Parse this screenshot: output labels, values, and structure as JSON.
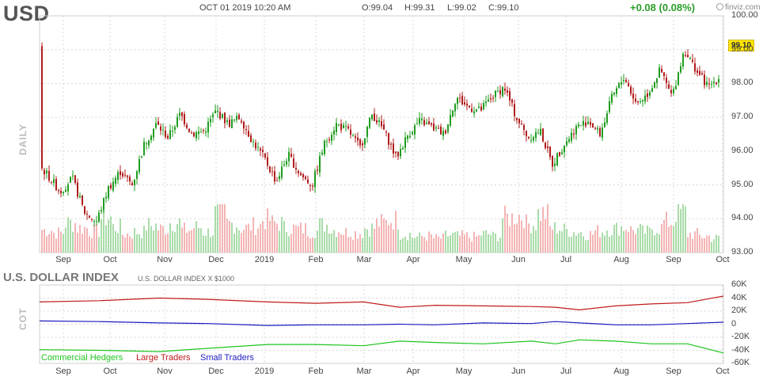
{
  "header": {
    "ticker": "USD",
    "datetime": "OCT 01 2019 10:20 AM",
    "open": "O:99.04",
    "high": "H:99.31",
    "low": "L:99.02",
    "close": "C:99.10",
    "change": "+0.08 (0.08%)",
    "logo": "finviz.com"
  },
  "colors": {
    "up": "#1f9c1f",
    "down": "#b01b1b",
    "volume_up": "#a9dca9",
    "volume_down": "#f4b4b4",
    "grid": "#d8d8d8",
    "commercial": "#1fc41f",
    "large": "#c01b1b",
    "small": "#1b1bc0",
    "price_tag": "#ffe600"
  },
  "chart_data": [
    {
      "type": "candlestick",
      "vertical_label": "DAILY",
      "ylim": [
        93.0,
        100.0
      ],
      "y_ticks": [
        "100.00",
        "99.00",
        "98.00",
        "97.00",
        "96.00",
        "95.00",
        "94.00",
        "93.00"
      ],
      "x_ticks": [
        "Sep",
        "Oct",
        "Nov",
        "Dec",
        "2019",
        "Feb",
        "Mar",
        "Apr",
        "May",
        "Jun",
        "Jul",
        "Aug",
        "Sep",
        "Oct"
      ],
      "last_price": "99.10",
      "closes": [
        {
          "x": "2018-08-30",
          "y": 95.5
        },
        {
          "x": "2018-09-04",
          "y": 95.2
        },
        {
          "x": "2018-09-10",
          "y": 94.8
        },
        {
          "x": "2018-09-17",
          "y": 95.2
        },
        {
          "x": "2018-09-24",
          "y": 94.2
        },
        {
          "x": "2018-10-01",
          "y": 93.9
        },
        {
          "x": "2018-10-08",
          "y": 94.9
        },
        {
          "x": "2018-10-15",
          "y": 95.4
        },
        {
          "x": "2018-10-22",
          "y": 95.0
        },
        {
          "x": "2018-10-29",
          "y": 96.2
        },
        {
          "x": "2018-11-05",
          "y": 96.8
        },
        {
          "x": "2018-11-12",
          "y": 96.4
        },
        {
          "x": "2018-11-19",
          "y": 97.1
        },
        {
          "x": "2018-11-26",
          "y": 96.5
        },
        {
          "x": "2018-12-03",
          "y": 96.6
        },
        {
          "x": "2018-12-10",
          "y": 97.2
        },
        {
          "x": "2018-12-17",
          "y": 96.8
        },
        {
          "x": "2018-12-24",
          "y": 97.0
        },
        {
          "x": "2018-12-31",
          "y": 96.3
        },
        {
          "x": "2019-01-07",
          "y": 95.8
        },
        {
          "x": "2019-01-14",
          "y": 95.1
        },
        {
          "x": "2019-01-21",
          "y": 95.9
        },
        {
          "x": "2019-01-28",
          "y": 95.3
        },
        {
          "x": "2019-02-04",
          "y": 95.0
        },
        {
          "x": "2019-02-11",
          "y": 96.2
        },
        {
          "x": "2019-02-18",
          "y": 96.8
        },
        {
          "x": "2019-02-25",
          "y": 96.6
        },
        {
          "x": "2019-03-04",
          "y": 96.1
        },
        {
          "x": "2019-03-11",
          "y": 97.1
        },
        {
          "x": "2019-03-18",
          "y": 96.6
        },
        {
          "x": "2019-03-25",
          "y": 95.8
        },
        {
          "x": "2019-04-01",
          "y": 96.5
        },
        {
          "x": "2019-04-08",
          "y": 96.9
        },
        {
          "x": "2019-04-15",
          "y": 96.7
        },
        {
          "x": "2019-04-22",
          "y": 96.5
        },
        {
          "x": "2019-04-29",
          "y": 97.6
        },
        {
          "x": "2019-05-06",
          "y": 97.3
        },
        {
          "x": "2019-05-13",
          "y": 97.2
        },
        {
          "x": "2019-05-20",
          "y": 97.6
        },
        {
          "x": "2019-05-27",
          "y": 97.9
        },
        {
          "x": "2019-06-03",
          "y": 97.0
        },
        {
          "x": "2019-06-10",
          "y": 96.4
        },
        {
          "x": "2019-06-17",
          "y": 96.6
        },
        {
          "x": "2019-06-24",
          "y": 95.6
        },
        {
          "x": "2019-07-01",
          "y": 96.2
        },
        {
          "x": "2019-07-08",
          "y": 96.7
        },
        {
          "x": "2019-07-15",
          "y": 96.9
        },
        {
          "x": "2019-07-22",
          "y": 96.5
        },
        {
          "x": "2019-07-29",
          "y": 97.6
        },
        {
          "x": "2019-08-05",
          "y": 98.2
        },
        {
          "x": "2019-08-12",
          "y": 97.4
        },
        {
          "x": "2019-08-19",
          "y": 97.7
        },
        {
          "x": "2019-08-26",
          "y": 98.4
        },
        {
          "x": "2019-09-02",
          "y": 97.6
        },
        {
          "x": "2019-09-09",
          "y": 99.0
        },
        {
          "x": "2019-09-16",
          "y": 98.4
        },
        {
          "x": "2019-09-23",
          "y": 97.9
        },
        {
          "x": "2019-09-30",
          "y": 98.2
        },
        {
          "x": "2019-10-01",
          "y": 99.1
        }
      ],
      "volume": {
        "values": [
          0.55,
          0.48,
          0.72,
          0.6,
          0.52,
          0.85,
          0.62,
          0.45,
          0.5,
          0.66,
          0.58,
          0.74,
          0.55,
          0.62,
          0.5,
          0.95,
          0.7,
          0.6,
          0.65,
          0.8,
          0.72,
          0.6,
          0.58,
          0.52,
          0.68,
          0.55,
          0.5,
          0.48,
          0.6,
          0.72,
          0.8,
          0.45,
          0.38,
          0.4,
          0.35,
          0.42,
          0.4,
          0.38,
          0.45,
          0.4,
          0.85,
          0.9,
          0.7,
          0.95,
          0.6,
          0.55,
          0.5,
          0.45,
          0.52,
          0.58,
          0.62,
          0.55,
          0.5,
          0.6,
          0.75,
          0.98,
          0.45,
          0.4,
          0.35
        ]
      }
    },
    {
      "type": "line",
      "title": "U.S. DOLLAR INDEX",
      "subtitle": "U.S. DOLLAR INDEX X $1000",
      "vertical_label": "COT",
      "ylim": [
        -60000,
        60000
      ],
      "y_ticks": [
        "60K",
        "40K",
        "20K",
        "0",
        "-20K",
        "-40K",
        "-60K"
      ],
      "x_ticks": [
        "Sep",
        "Oct",
        "Nov",
        "Dec",
        "2019",
        "Feb",
        "Mar",
        "Apr",
        "May",
        "Jun",
        "Jul",
        "Aug",
        "Sep",
        "Oct"
      ],
      "series": [
        {
          "name": "Commercial Hedgers",
          "points": [
            {
              "x": "2018-08-28",
              "y": -39000
            },
            {
              "x": "2018-10-02",
              "y": -40000
            },
            {
              "x": "2018-11-06",
              "y": -42000
            },
            {
              "x": "2018-12-04",
              "y": -37000
            },
            {
              "x": "2019-01-08",
              "y": -31000
            },
            {
              "x": "2019-02-05",
              "y": -31000
            },
            {
              "x": "2019-03-05",
              "y": -33000
            },
            {
              "x": "2019-03-26",
              "y": -26000
            },
            {
              "x": "2019-04-16",
              "y": -28000
            },
            {
              "x": "2019-05-14",
              "y": -30000
            },
            {
              "x": "2019-06-11",
              "y": -26000
            },
            {
              "x": "2019-06-25",
              "y": -30000
            },
            {
              "x": "2019-07-09",
              "y": -24000
            },
            {
              "x": "2019-07-30",
              "y": -26000
            },
            {
              "x": "2019-08-20",
              "y": -30000
            },
            {
              "x": "2019-09-10",
              "y": -30000
            },
            {
              "x": "2019-10-01",
              "y": -44000
            }
          ]
        },
        {
          "name": "Large Traders",
          "points": [
            {
              "x": "2018-08-28",
              "y": 34000
            },
            {
              "x": "2018-10-02",
              "y": 36000
            },
            {
              "x": "2018-11-06",
              "y": 40000
            },
            {
              "x": "2018-12-04",
              "y": 38000
            },
            {
              "x": "2019-01-08",
              "y": 34000
            },
            {
              "x": "2019-02-05",
              "y": 32000
            },
            {
              "x": "2019-03-05",
              "y": 34000
            },
            {
              "x": "2019-03-26",
              "y": 26000
            },
            {
              "x": "2019-04-16",
              "y": 29000
            },
            {
              "x": "2019-05-14",
              "y": 28000
            },
            {
              "x": "2019-06-11",
              "y": 27000
            },
            {
              "x": "2019-06-25",
              "y": 26000
            },
            {
              "x": "2019-07-09",
              "y": 22000
            },
            {
              "x": "2019-07-30",
              "y": 28000
            },
            {
              "x": "2019-08-20",
              "y": 31000
            },
            {
              "x": "2019-09-10",
              "y": 33000
            },
            {
              "x": "2019-10-01",
              "y": 43000
            }
          ]
        },
        {
          "name": "Small Traders",
          "points": [
            {
              "x": "2018-08-28",
              "y": 5000
            },
            {
              "x": "2018-10-02",
              "y": 4000
            },
            {
              "x": "2018-11-06",
              "y": 2000
            },
            {
              "x": "2018-12-04",
              "y": 1000
            },
            {
              "x": "2019-01-08",
              "y": -2000
            },
            {
              "x": "2019-02-05",
              "y": -1000
            },
            {
              "x": "2019-03-05",
              "y": -1000
            },
            {
              "x": "2019-03-26",
              "y": 0
            },
            {
              "x": "2019-04-16",
              "y": -1000
            },
            {
              "x": "2019-05-14",
              "y": 2000
            },
            {
              "x": "2019-06-11",
              "y": 1000
            },
            {
              "x": "2019-06-25",
              "y": 4000
            },
            {
              "x": "2019-07-09",
              "y": 2000
            },
            {
              "x": "2019-07-30",
              "y": -1000
            },
            {
              "x": "2019-08-20",
              "y": -1000
            },
            {
              "x": "2019-09-10",
              "y": 1000
            },
            {
              "x": "2019-10-01",
              "y": 3000
            }
          ]
        }
      ]
    }
  ]
}
